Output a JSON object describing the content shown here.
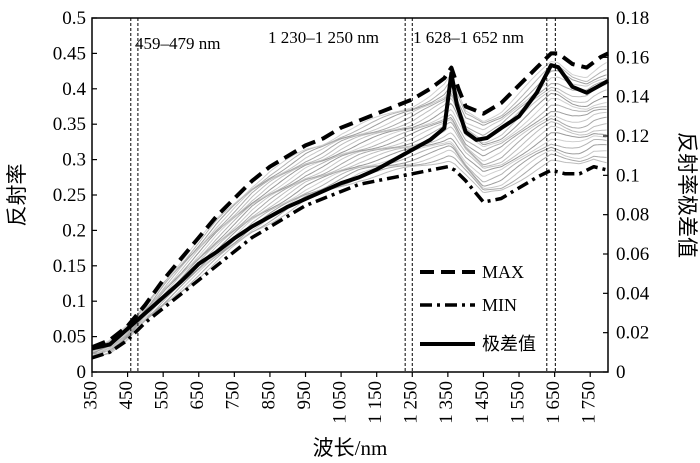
{
  "chart_data": {
    "type": "line",
    "xlabel": "波长/nm",
    "ylabel_left": "反射率",
    "ylabel_right": "反射率极差值",
    "xlim": [
      350,
      1800
    ],
    "ylim_left": [
      0,
      0.5
    ],
    "ylim_right": [
      0,
      0.18
    ],
    "x_ticks": [
      350,
      450,
      550,
      650,
      750,
      850,
      950,
      1050,
      1150,
      1250,
      1350,
      1450,
      1550,
      1650,
      1750
    ],
    "x_tick_labels": [
      "350",
      "450",
      "550",
      "650",
      "750",
      "850",
      "950",
      "1 050",
      "1 150",
      "1 250",
      "1 350",
      "1 450",
      "1 550",
      "1 650",
      "1 750"
    ],
    "y_left_ticks": [
      0,
      0.05,
      0.1,
      0.15,
      0.2,
      0.25,
      0.3,
      0.35,
      0.4,
      0.45,
      0.5
    ],
    "y_left_tick_labels": [
      "0",
      "0.05",
      "0.1",
      "0.15",
      "0.2",
      "0.25",
      "0.3",
      "0.35",
      "0.4",
      "0.45",
      "0.5"
    ],
    "y_right_ticks": [
      0,
      0.02,
      0.04,
      0.06,
      0.08,
      0.1,
      0.12,
      0.14,
      0.16,
      0.18
    ],
    "y_right_tick_labels": [
      "0",
      "0.02",
      "0.04",
      "0.06",
      "0.08",
      "0.1",
      "0.12",
      "0.14",
      "0.16",
      "0.18"
    ],
    "band_lines": [
      459,
      479,
      1230,
      1250,
      1628,
      1652
    ],
    "annotations": [
      "459–479 nm",
      "1 230–1 250 nm",
      "1 628–1 652 nm"
    ],
    "series": [
      {
        "name": "MAX",
        "axis": "left",
        "style": "dashed",
        "x": [
          350,
          400,
          450,
          500,
          550,
          600,
          650,
          700,
          750,
          800,
          850,
          900,
          950,
          1000,
          1050,
          1100,
          1150,
          1200,
          1250,
          1300,
          1340,
          1360,
          1380,
          1400,
          1450,
          1500,
          1550,
          1600,
          1640,
          1660,
          1700,
          1740,
          1780,
          1800
        ],
        "values": [
          0.035,
          0.045,
          0.065,
          0.095,
          0.13,
          0.16,
          0.19,
          0.22,
          0.245,
          0.27,
          0.29,
          0.305,
          0.32,
          0.33,
          0.345,
          0.355,
          0.365,
          0.375,
          0.385,
          0.4,
          0.415,
          0.43,
          0.4,
          0.375,
          0.365,
          0.38,
          0.405,
          0.43,
          0.45,
          0.45,
          0.435,
          0.43,
          0.445,
          0.45
        ]
      },
      {
        "name": "MIN",
        "axis": "left",
        "style": "dashdot",
        "x": [
          350,
          400,
          450,
          500,
          550,
          600,
          650,
          700,
          750,
          800,
          850,
          900,
          950,
          1000,
          1050,
          1100,
          1150,
          1200,
          1250,
          1300,
          1350,
          1370,
          1400,
          1450,
          1500,
          1550,
          1600,
          1640,
          1680,
          1720,
          1760,
          1800
        ],
        "values": [
          0.02,
          0.028,
          0.045,
          0.07,
          0.09,
          0.11,
          0.13,
          0.15,
          0.17,
          0.19,
          0.205,
          0.22,
          0.235,
          0.245,
          0.255,
          0.265,
          0.27,
          0.275,
          0.28,
          0.285,
          0.29,
          0.285,
          0.27,
          0.24,
          0.245,
          0.26,
          0.275,
          0.285,
          0.28,
          0.28,
          0.29,
          0.285
        ]
      },
      {
        "name": "极差值",
        "axis": "right",
        "style": "solid",
        "x": [
          350,
          400,
          450,
          500,
          550,
          600,
          650,
          700,
          750,
          800,
          850,
          900,
          950,
          1000,
          1050,
          1100,
          1150,
          1200,
          1250,
          1300,
          1340,
          1360,
          1375,
          1400,
          1430,
          1460,
          1500,
          1550,
          1600,
          1640,
          1660,
          1700,
          1740,
          1780,
          1800
        ],
        "values": [
          0.012,
          0.014,
          0.022,
          0.03,
          0.038,
          0.046,
          0.055,
          0.061,
          0.068,
          0.074,
          0.079,
          0.084,
          0.088,
          0.092,
          0.096,
          0.099,
          0.103,
          0.108,
          0.113,
          0.118,
          0.124,
          0.152,
          0.136,
          0.122,
          0.118,
          0.119,
          0.124,
          0.13,
          0.142,
          0.156,
          0.155,
          0.145,
          0.142,
          0.146,
          0.148
        ]
      }
    ],
    "legend": [
      "MAX",
      "MIN",
      "极差值"
    ],
    "legend_placement": "bottom-right"
  }
}
